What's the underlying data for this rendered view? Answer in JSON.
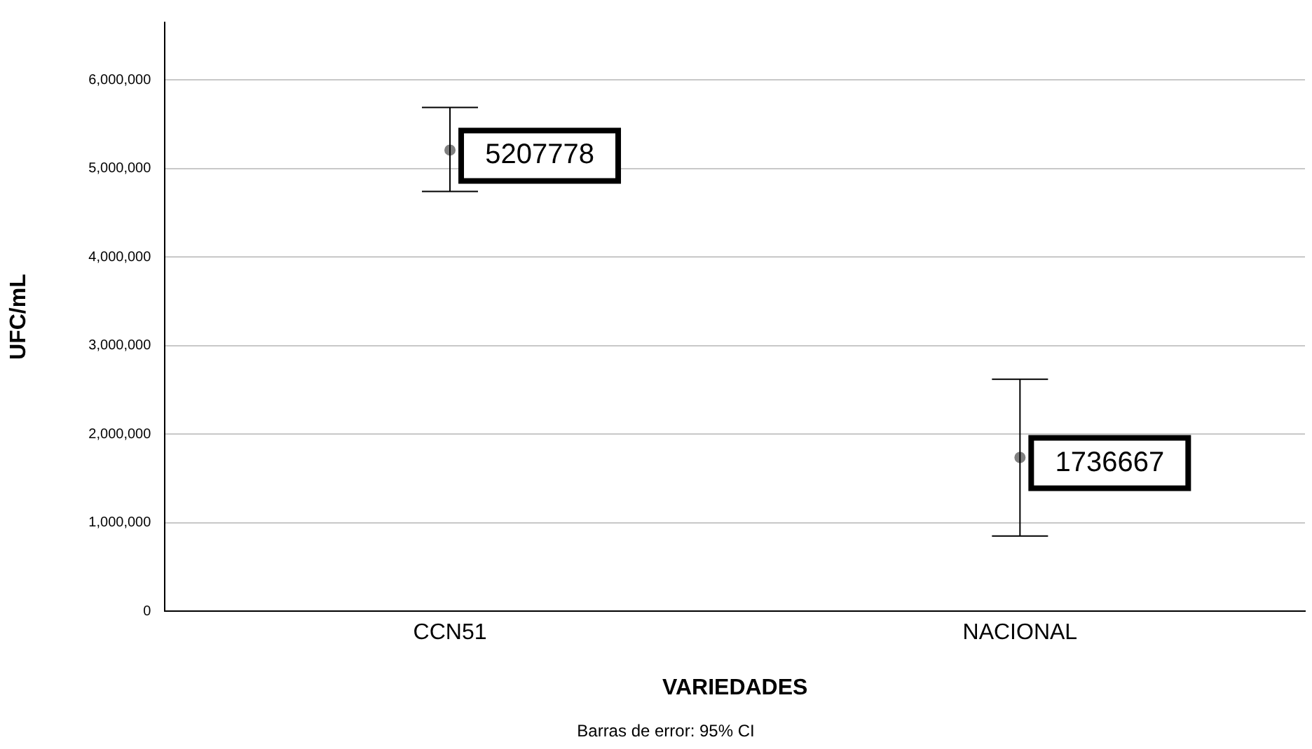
{
  "chart_data": {
    "type": "scatter",
    "xlabel": "VARIEDADES",
    "ylabel": "UFC/mL",
    "categories": [
      "CCN51",
      "NACIONAL"
    ],
    "values": [
      5207778,
      1736667
    ],
    "errors": [
      [
        4740000,
        5690000
      ],
      [
        850000,
        2620000
      ]
    ],
    "color": "#808080",
    "marker": "circle",
    "data_labels": true,
    "ylim": [
      0,
      6650000
    ],
    "yticks": [
      {
        "value": 0,
        "label": "0"
      },
      {
        "value": 1000000,
        "label": "1,000,000"
      },
      {
        "value": 2000000,
        "label": "2,000,000"
      },
      {
        "value": 3000000,
        "label": "3,000,000"
      },
      {
        "value": 4000000,
        "label": "4,000,000"
      },
      {
        "value": 5000000,
        "label": "5,000,000"
      },
      {
        "value": 6000000,
        "label": "6,000,000"
      }
    ],
    "grid": "y",
    "legend": false,
    "annotations": [
      "Barras de error: 95% CI"
    ]
  }
}
